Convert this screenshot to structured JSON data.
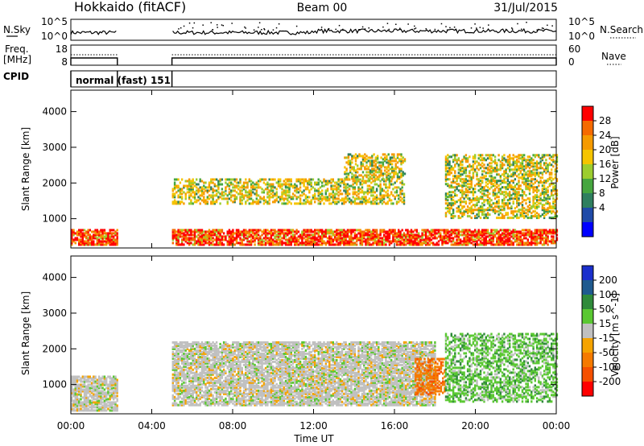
{
  "header": {
    "radar": "Hokkaido (fitACF)",
    "beam": "Beam 00",
    "date": "31/Jul/2015"
  },
  "noise_panel": {
    "left_label": "N.Sky",
    "right_label": "N.Search",
    "left_ticks": [
      "10^5",
      "10^0"
    ],
    "right_ticks": [
      "10^5",
      "10^0"
    ]
  },
  "freq_panel": {
    "left_label_line1": "Freq.",
    "left_label_line2": "[MHz]",
    "right_label": "Nave",
    "left_ticks": [
      "18",
      "8"
    ],
    "right_ticks": [
      "60",
      "0"
    ]
  },
  "cpid": {
    "label": "CPID",
    "value": "normal (fast) 151"
  },
  "x_axis": {
    "ticks": [
      "00:00",
      "04:00",
      "08:00",
      "12:00",
      "16:00",
      "20:00",
      "00:00"
    ],
    "label": "Time UT"
  },
  "power_panel": {
    "y_label": "Slant Range [km]",
    "y_ticks": [
      "1000",
      "2000",
      "3000",
      "4000"
    ],
    "scale_label": "Power [dB]",
    "scale_ticks": [
      "4",
      "8",
      "12",
      "16",
      "20",
      "24",
      "28"
    ],
    "scale_colors": [
      "#0000ff",
      "#1f4aa8",
      "#2f7f5f",
      "#46a63f",
      "#9ccd2f",
      "#f5c400",
      "#f59a00",
      "#f56a00",
      "#ff0000"
    ]
  },
  "velocity_panel": {
    "y_label": "Slant Range [km]",
    "y_ticks": [
      "1000",
      "2000",
      "3000",
      "4000"
    ],
    "scale_label": "Velocity [m s^-1]",
    "scale_ticks": [
      "200",
      "100",
      "50",
      "15",
      "-15",
      "-50",
      "-100",
      "-200"
    ],
    "scale_colors": [
      "#1a2fcc",
      "#1f5a8f",
      "#2f8a3a",
      "#5ac832",
      "#c0c0c0",
      "#f5a300",
      "#f57a00",
      "#f55000",
      "#ff0000"
    ]
  },
  "chart_data": {
    "type": "heatmap",
    "x_range_hours": [
      0,
      24
    ],
    "y_range_km": [
      180,
      4600
    ],
    "data_gaps_ut": [
      [
        2.3,
        5.0
      ]
    ],
    "power_bands": [
      {
        "start_h": 0.0,
        "end_h": 2.3,
        "km_low": 250,
        "km_high": 700,
        "level": "high"
      },
      {
        "start_h": 5.0,
        "end_h": 24.0,
        "km_low": 250,
        "km_high": 700,
        "level": "high"
      },
      {
        "start_h": 5.0,
        "end_h": 16.5,
        "km_low": 1400,
        "km_high": 2100,
        "level": "medium"
      },
      {
        "start_h": 13.5,
        "end_h": 16.5,
        "km_low": 2100,
        "km_high": 2800,
        "level": "medium"
      },
      {
        "start_h": 18.5,
        "end_h": 24.0,
        "km_low": 1000,
        "km_high": 2800,
        "level": "medium"
      }
    ],
    "velocity_bands": [
      {
        "start_h": 0.0,
        "end_h": 2.3,
        "km_low": 250,
        "km_high": 1200,
        "sign": "near-zero"
      },
      {
        "start_h": 5.0,
        "end_h": 18.0,
        "km_low": 400,
        "km_high": 2200,
        "sign": "near-zero"
      },
      {
        "start_h": 17.0,
        "end_h": 18.5,
        "km_low": 700,
        "km_high": 1700,
        "sign": "negative"
      },
      {
        "start_h": 18.5,
        "end_h": 24.0,
        "km_low": 500,
        "km_high": 2400,
        "sign": "positive"
      }
    ]
  }
}
